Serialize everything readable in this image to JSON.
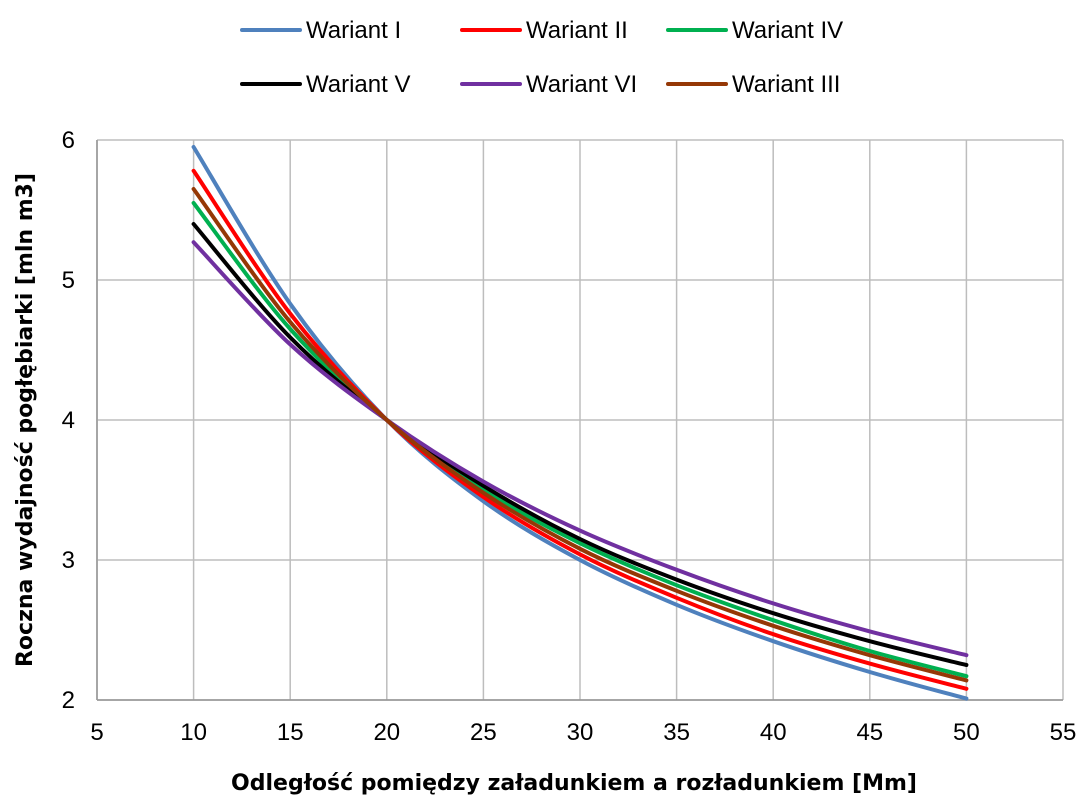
{
  "chart_data": {
    "type": "line",
    "title": "",
    "xlabel": "Odległość pomiędzy załadunkiem a rozładunkiem [Mm]",
    "ylabel": "Roczna wydajność pogłębiarki [mln m3]",
    "xlim": [
      5,
      55
    ],
    "ylim": [
      2,
      6
    ],
    "xticks": [
      5,
      10,
      15,
      20,
      25,
      30,
      35,
      40,
      45,
      50,
      55
    ],
    "yticks": [
      2,
      3,
      4,
      5,
      6
    ],
    "grid": true,
    "legend_position": "top",
    "x": [
      10,
      15,
      20,
      25,
      30,
      35,
      40,
      45,
      50
    ],
    "series": [
      {
        "name": "Wariant I",
        "color": "#4f81bd",
        "values": [
          5.95,
          4.83,
          4.0,
          3.42,
          3.0,
          2.68,
          2.42,
          2.2,
          2.01
        ]
      },
      {
        "name": "Wariant II",
        "color": "#ff0000",
        "values": [
          5.78,
          4.76,
          4.0,
          3.45,
          3.04,
          2.73,
          2.47,
          2.26,
          2.08
        ]
      },
      {
        "name": "Wariant IV",
        "color": "#00b050",
        "values": [
          5.55,
          4.65,
          4.0,
          3.5,
          3.12,
          2.82,
          2.57,
          2.35,
          2.17
        ]
      },
      {
        "name": "Wariant V",
        "color": "#000000",
        "values": [
          5.4,
          4.59,
          4.0,
          3.53,
          3.15,
          2.86,
          2.62,
          2.42,
          2.25
        ]
      },
      {
        "name": "Wariant VI",
        "color": "#7030a0",
        "values": [
          5.27,
          4.54,
          4.0,
          3.56,
          3.21,
          2.93,
          2.69,
          2.49,
          2.32
        ]
      },
      {
        "name": "Wariant III",
        "color": "#953806",
        "values": [
          5.65,
          4.7,
          4.0,
          3.48,
          3.08,
          2.78,
          2.53,
          2.32,
          2.14
        ]
      }
    ],
    "legend_rows": [
      [
        "Wariant I",
        "Wariant II",
        "Wariant IV"
      ],
      [
        "Wariant V",
        "Wariant VI",
        "Wariant III"
      ]
    ]
  }
}
